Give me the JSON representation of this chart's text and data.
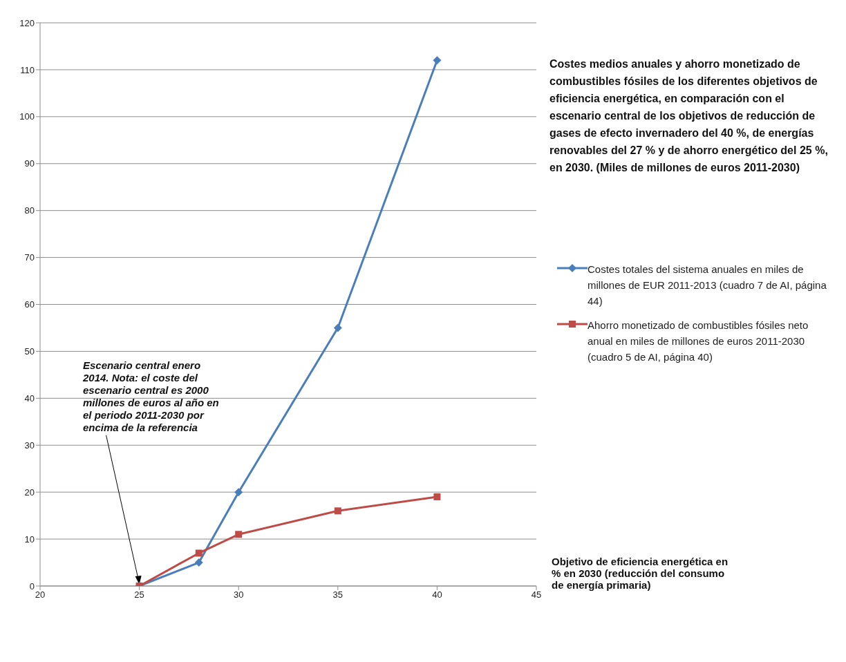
{
  "chart_data": {
    "type": "line",
    "title": "Costes medios anuales y ahorro monetizado de combustibles fósiles de los diferentes objetivos de eficiencia energética, en comparación con el escenario central de los objetivos de reducción de gases de efecto invernadero del 40 %, de energías renovables del 27 % y de ahorro energético del 25 %, en 2030. (Miles de millones de euros 2011-2030)",
    "xlabel": "Objetivo de eficiencia energética en % en 2030 (reducción del consumo de energía primaria)",
    "x": [
      25,
      28,
      30,
      35,
      40
    ],
    "series": [
      {
        "name": "Costes totales del sistema anuales en miles de millones de EUR 2011-2013 (cuadro 7 de AI, página 44)",
        "color": "#4a7ebb",
        "marker": "diamond",
        "values": [
          0,
          5,
          20,
          55,
          112
        ]
      },
      {
        "name": "Ahorro monetizado de combustibles fósiles neto anual en miles de millones de euros 2011-2030 (cuadro 5 de AI, página 40)",
        "color": "#be4b48",
        "marker": "square",
        "values": [
          0,
          7,
          11,
          16,
          19
        ]
      }
    ],
    "xlim": [
      20,
      45
    ],
    "xticks": [
      20,
      25,
      30,
      35,
      40,
      45
    ],
    "ylim": [
      0,
      120
    ],
    "yticks": [
      0,
      10,
      20,
      30,
      40,
      50,
      60,
      70,
      80,
      90,
      100,
      110,
      120
    ],
    "grid": "y",
    "legend": "right",
    "annotations": [
      {
        "text": "Escenario central enero 2014. Nota: el coste del escenario central es 2000 millones de euros al año en el periodo 2011-2030 por encima de la referencia",
        "x": 25,
        "y": 0
      }
    ]
  }
}
